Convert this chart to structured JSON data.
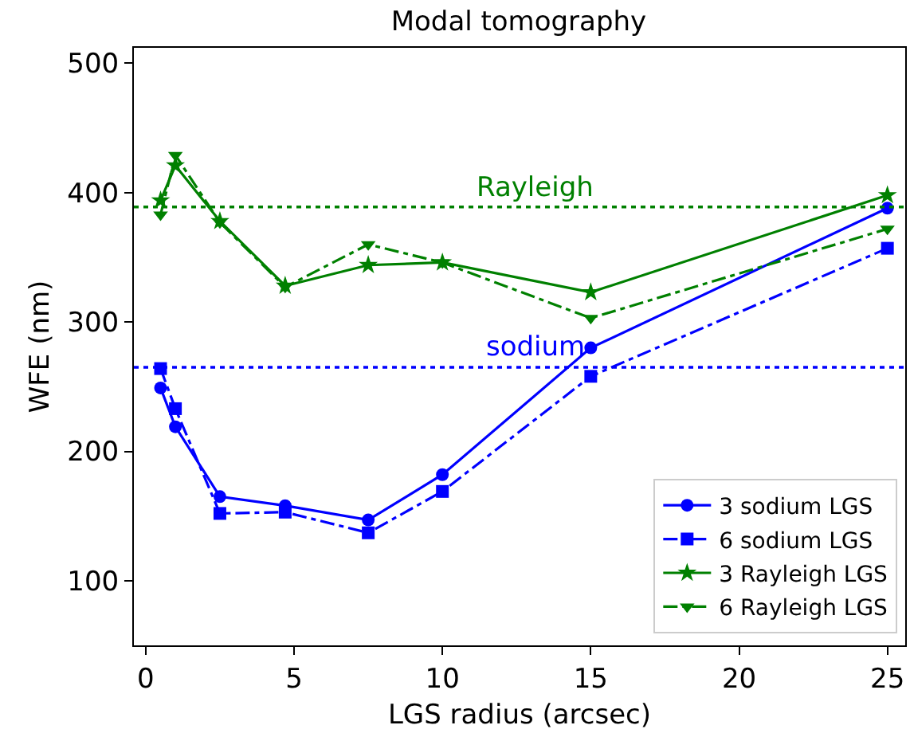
{
  "chart_data": {
    "type": "line",
    "title": "Modal tomography",
    "xlabel": "LGS radius (arcsec)",
    "ylabel": "WFE (nm)",
    "x": [
      0.5,
      1,
      2.5,
      4.7,
      7.5,
      10,
      15,
      25
    ],
    "series": [
      {
        "name": "3 sodium LGS",
        "color": "#0000ff",
        "marker": "circle",
        "line_style": "solid",
        "values": [
          249,
          219,
          165,
          158,
          147,
          182,
          280,
          388
        ]
      },
      {
        "name": "6 sodium LGS",
        "color": "#0000ff",
        "marker": "square",
        "line_style": "dashdot",
        "values": [
          264,
          233,
          152,
          153,
          137,
          169,
          258,
          357
        ]
      },
      {
        "name": "3 Rayleigh LGS",
        "color": "#008000",
        "marker": "star",
        "line_style": "solid",
        "values": [
          394,
          421,
          378,
          328,
          344,
          346,
          323,
          398
        ]
      },
      {
        "name": "6 Rayleigh LGS",
        "color": "#008000",
        "marker": "triangle",
        "line_style": "dashdot",
        "values": [
          383,
          429,
          377,
          327,
          360,
          346,
          303,
          372
        ]
      }
    ],
    "ref_lines": [
      {
        "axis": "y",
        "value": 389,
        "label": "Rayleigh",
        "color": "#008000",
        "line_style": "dotted"
      },
      {
        "axis": "y",
        "value": 265,
        "label": "sodium",
        "color": "#0000ff",
        "line_style": "dotted"
      }
    ],
    "xlim": [
      -0.4,
      25.6
    ],
    "xticks": [
      0,
      5,
      10,
      15,
      20,
      25
    ],
    "ylim": [
      50,
      512
    ],
    "yticks": [
      100,
      200,
      300,
      400,
      500
    ],
    "grid": false,
    "legend": "bottom right"
  }
}
